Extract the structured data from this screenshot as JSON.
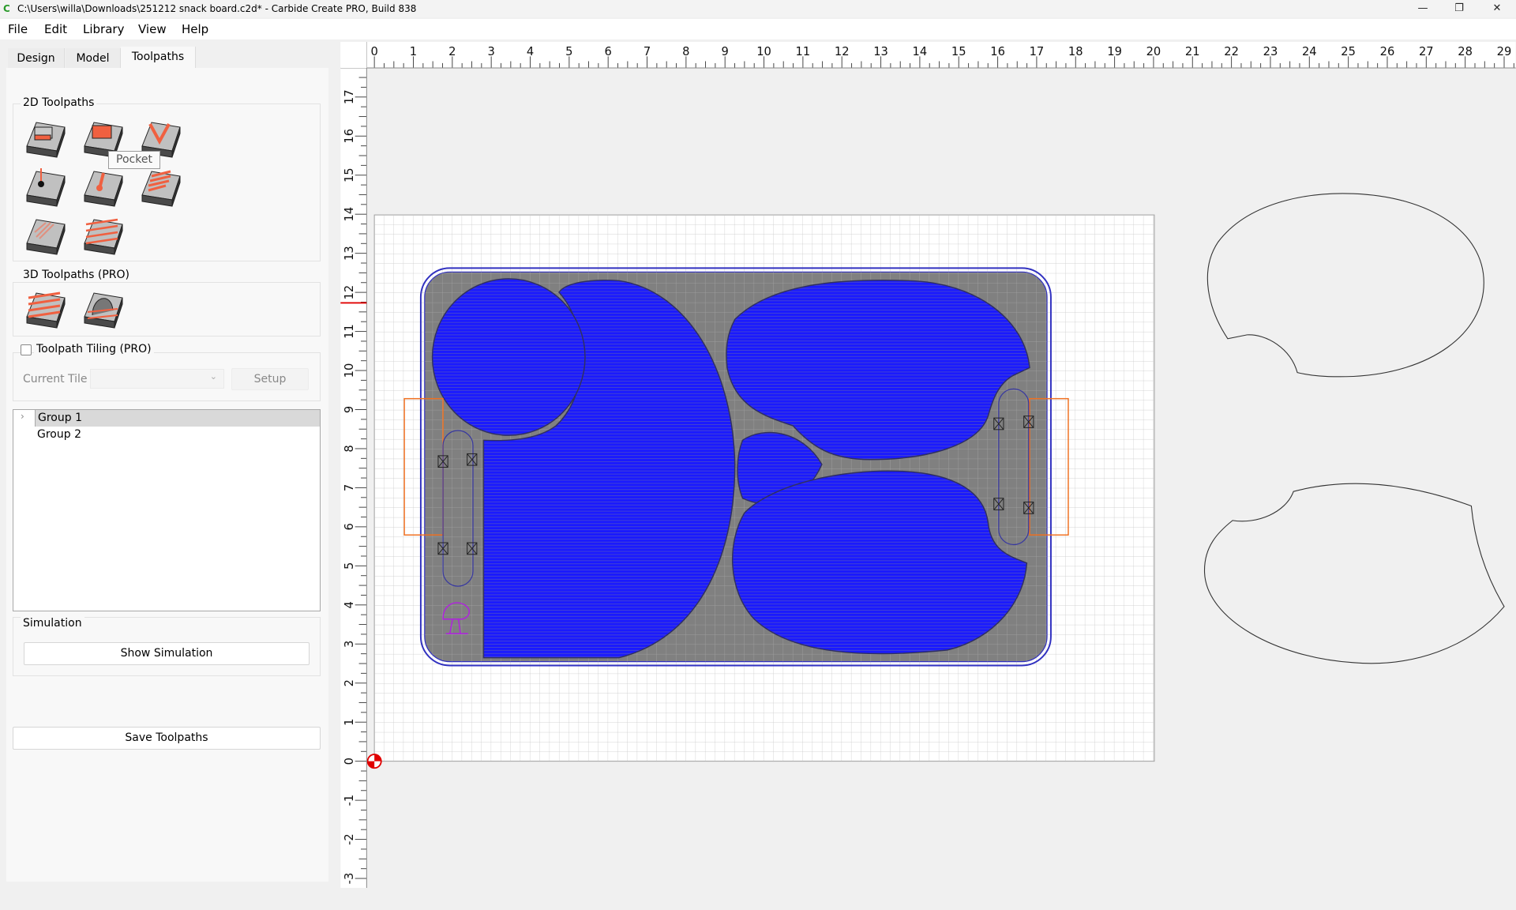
{
  "window": {
    "title": "C:\\Users\\willa\\Downloads\\251212 snack board.c2d* - Carbide Create PRO, Build 838",
    "minimize": "—",
    "restore": "❐",
    "close": "✕",
    "app_icon": "carbide-c-icon"
  },
  "menu": [
    "File",
    "Edit",
    "Library",
    "View",
    "Help"
  ],
  "tabs": [
    {
      "label": "Design"
    },
    {
      "label": "Model"
    },
    {
      "label": "Toolpaths",
      "active": true
    }
  ],
  "toolpaths_2d": {
    "label": "2D Toolpaths",
    "items": [
      "contour",
      "pocket",
      "vcarve",
      "drill",
      "advanced-vcarve",
      "texture",
      "rough-pocket",
      "rest-machining"
    ]
  },
  "tooltip": "Pocket",
  "toolpaths_3d": {
    "label": "3D Toolpaths (PRO)",
    "items": [
      "3d-rough",
      "3d-finish"
    ]
  },
  "tiling": {
    "label": "Toolpath Tiling (PRO)",
    "checked": false,
    "current_tile_label": "Current Tile",
    "current_tile_value": "",
    "setup_label": "Setup"
  },
  "tree": [
    {
      "label": "Group 1",
      "selected": true,
      "expandable": true
    },
    {
      "label": "Group 2",
      "selected": false
    }
  ],
  "simulation": {
    "label": "Simulation",
    "show_button": "Show Simulation"
  },
  "save_button": "Save Toolpaths",
  "rulers": {
    "x_labels": [
      "0",
      "1",
      "2",
      "3",
      "4",
      "5",
      "6",
      "7",
      "8",
      "9",
      "10",
      "11",
      "12",
      "13",
      "14",
      "15",
      "16",
      "17",
      "18",
      "19",
      "20",
      "21",
      "22",
      "23",
      "24",
      "25",
      "26",
      "27",
      "28",
      "29"
    ],
    "y_labels": [
      "-3",
      "-2",
      "-1",
      "0",
      "1",
      "2",
      "3",
      "4",
      "5",
      "6",
      "7",
      "8",
      "9",
      "10",
      "11",
      "12",
      "13",
      "14",
      "15",
      "16",
      "17"
    ]
  },
  "stock": {
    "width_in": 20,
    "height_in": 14
  },
  "colors": {
    "toolpath": "#1010ff",
    "stock_fill": "#808080",
    "tab_outline": "#f07020",
    "accent_origin": "#e00000"
  }
}
